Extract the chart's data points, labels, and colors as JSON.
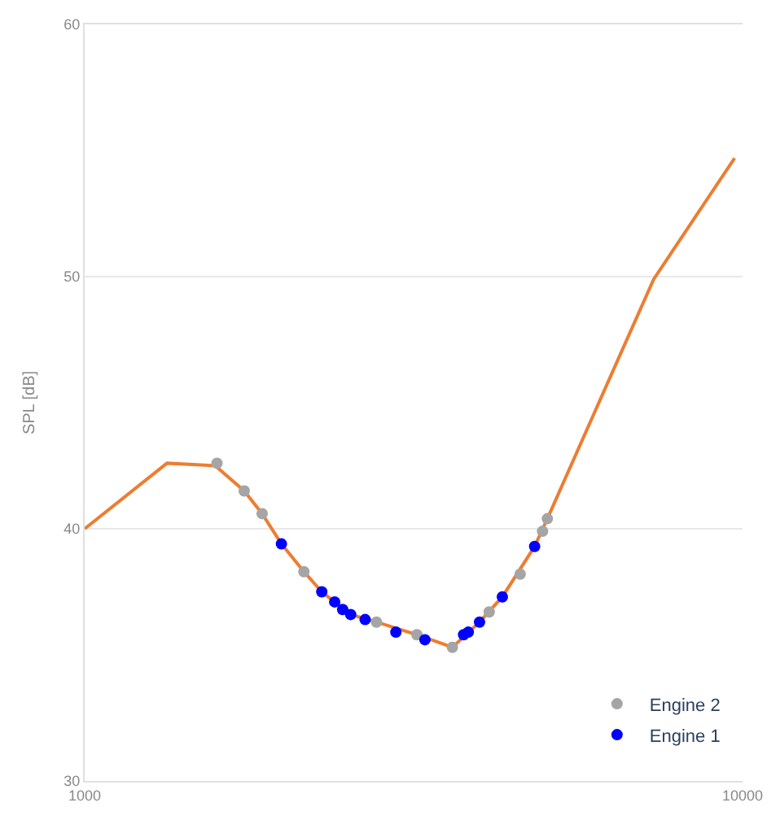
{
  "chart_data": {
    "type": "line",
    "ylabel": "SPL [dB]",
    "log": "x",
    "xlim": [
      1000,
      10000
    ],
    "xticks": [
      1000,
      10000
    ],
    "ylim": [
      30,
      60
    ],
    "yticks": [
      30,
      40,
      50,
      60
    ],
    "grid": "y",
    "legend": "bottom right",
    "series": [
      {
        "color": "#ed7d31",
        "marker": "none",
        "x": [
          1000,
          1334,
          1579,
          1748,
          1861,
          1991,
          2154,
          2293,
          2537,
          2777,
          3199,
          3622,
          3983,
          4314,
          4830,
          5050,
          7328,
          9726
        ],
        "values": [
          40.0,
          42.6,
          42.5,
          41.5,
          40.6,
          39.4,
          38.3,
          37.5,
          36.6,
          36.3,
          35.8,
          35.3,
          36.3,
          37.3,
          39.3,
          40.4,
          49.9,
          54.7
        ]
      },
      {
        "type": "scatter",
        "name": "Engine 2",
        "color": "#a5a5a5",
        "marker": "circle",
        "x": [
          1589,
          1748,
          1861,
          2154,
          2777,
          3199,
          3622,
          4120,
          4592,
          4966,
          5050
        ],
        "values": [
          42.6,
          41.5,
          40.6,
          38.3,
          36.3,
          35.8,
          35.3,
          36.7,
          38.2,
          39.9,
          40.4
        ]
      },
      {
        "type": "scatter",
        "name": "Engine 1",
        "color": "#0000ff",
        "marker": "circle",
        "x": [
          1991,
          2293,
          2399,
          2467,
          2537,
          2669,
          2972,
          3290,
          3767,
          3829,
          3983,
          4314,
          4830
        ],
        "values": [
          39.4,
          37.5,
          37.1,
          36.8,
          36.6,
          36.4,
          35.9,
          35.6,
          35.8,
          35.9,
          36.3,
          37.3,
          39.3
        ]
      }
    ]
  }
}
